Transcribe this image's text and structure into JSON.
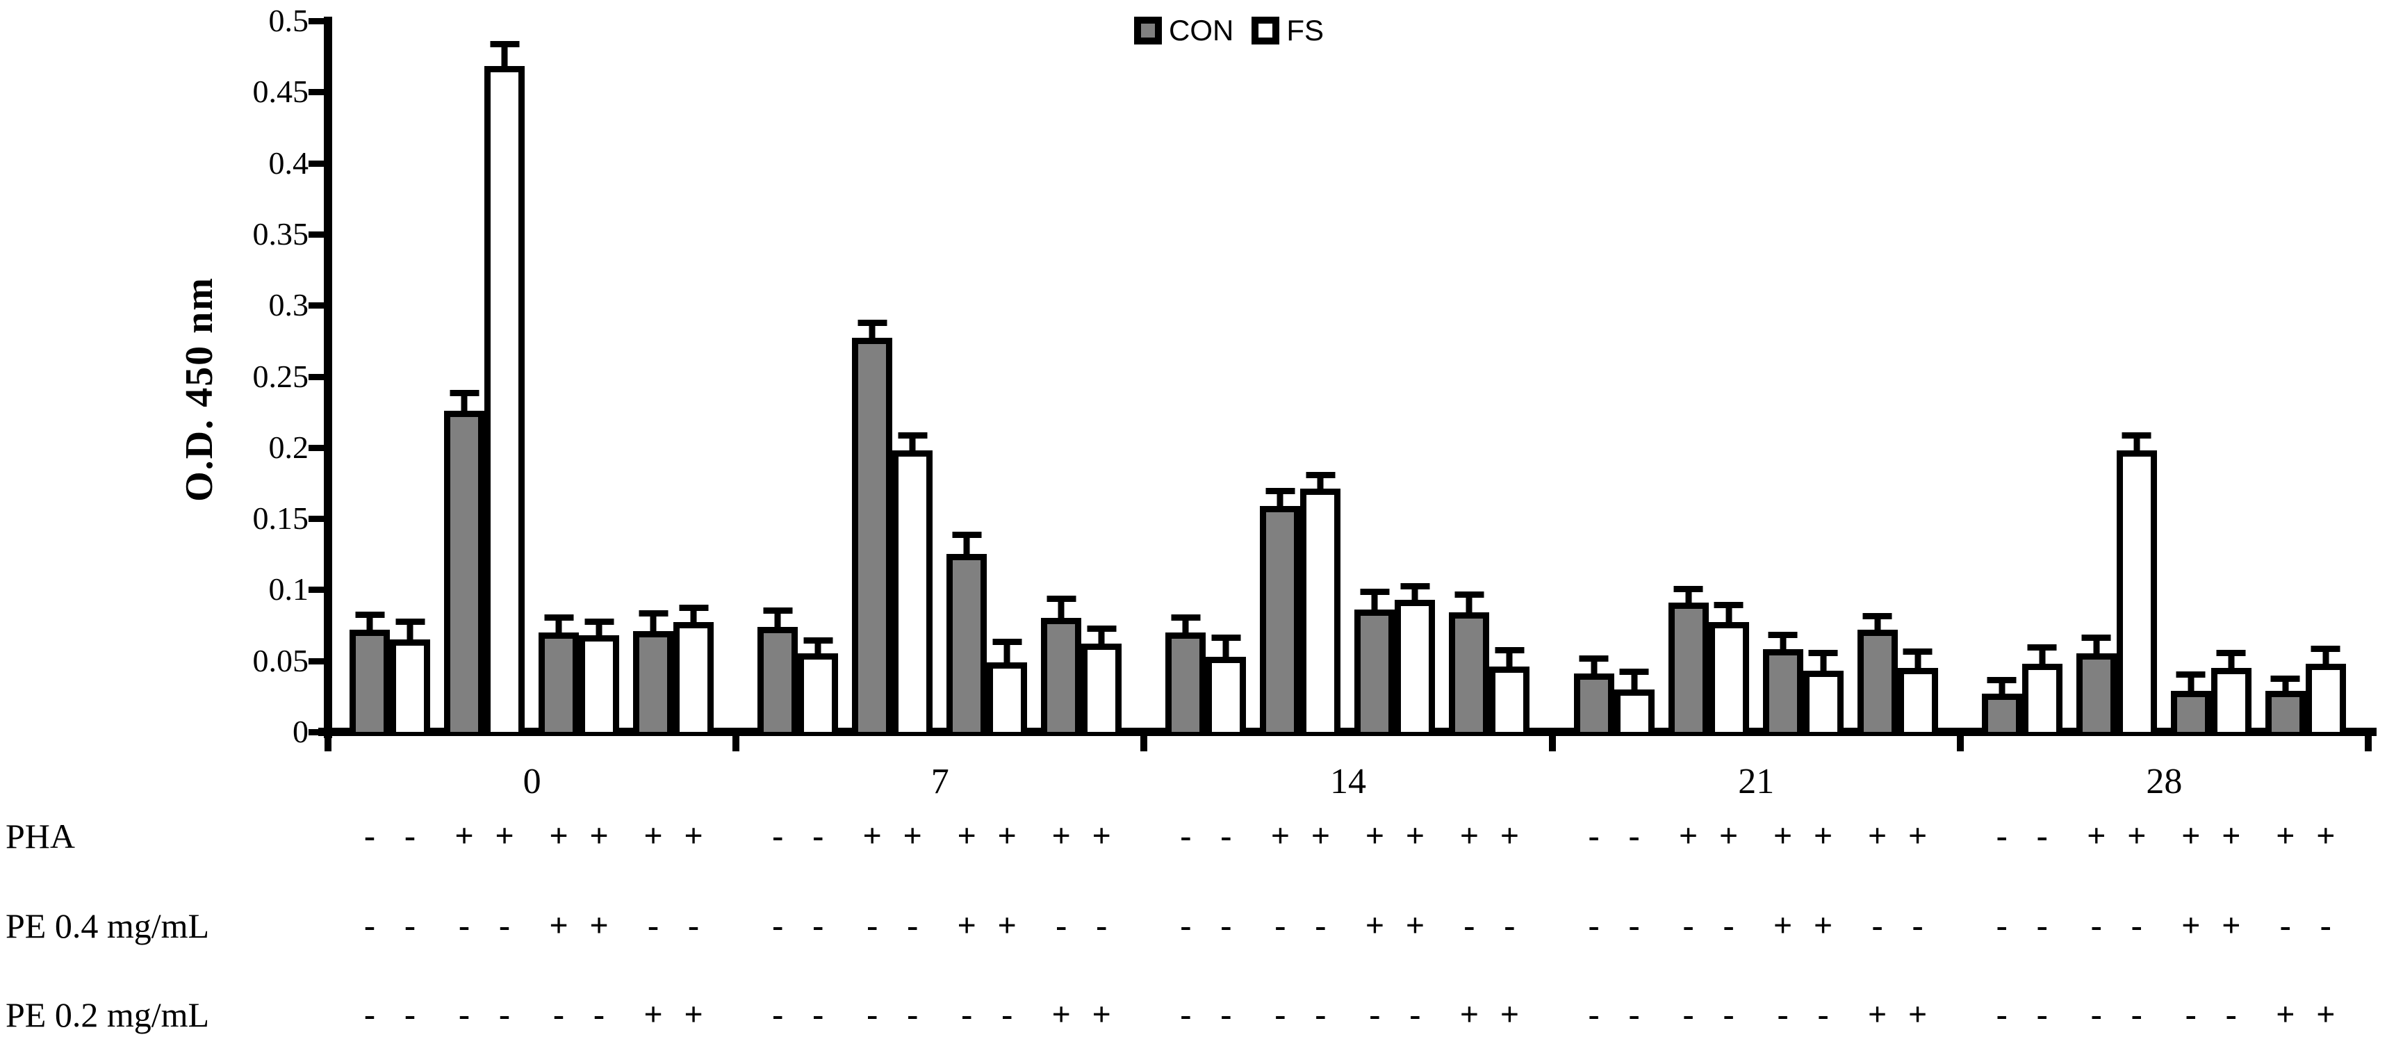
{
  "chart_data": {
    "type": "bar",
    "title": "",
    "ylabel": "O.D. 450 nm",
    "xlabel": "",
    "ylim": [
      0,
      0.5
    ],
    "ytick_labels": [
      "0",
      "0.05",
      "0.1",
      "0.15",
      "0.2",
      "0.25",
      "0.3",
      "0.35",
      "0.4",
      "0.45",
      "0.5"
    ],
    "grid": false,
    "error_bars": "upper",
    "legend": {
      "position": "top-center",
      "entries": [
        {
          "name": "CON",
          "fill": "#808080"
        },
        {
          "name": "FS",
          "fill": "#FFFFFF"
        }
      ]
    },
    "categories": [
      "0",
      "7",
      "14",
      "21",
      "28"
    ],
    "bars_per_group": 8,
    "series": [
      {
        "name": "CON",
        "fill": "#808080",
        "values": [
          [
            0.072,
            0.226,
            0.07,
            0.071
          ],
          [
            0.074,
            0.277,
            0.125,
            0.08
          ],
          [
            0.07,
            0.159,
            0.086,
            0.084
          ],
          [
            0.041,
            0.091,
            0.058,
            0.072
          ],
          [
            0.027,
            0.055,
            0.029,
            0.029
          ]
        ],
        "errors": [
          [
            0.017,
            0.019,
            0.017,
            0.019
          ],
          [
            0.018,
            0.017,
            0.02,
            0.02
          ],
          [
            0.017,
            0.017,
            0.019,
            0.019
          ],
          [
            0.017,
            0.016,
            0.017,
            0.016
          ],
          [
            0.016,
            0.018,
            0.018,
            0.015
          ]
        ]
      },
      {
        "name": "FS",
        "fill": "#FFFFFF",
        "values": [
          [
            0.065,
            0.468,
            0.068,
            0.077
          ],
          [
            0.055,
            0.198,
            0.049,
            0.062
          ],
          [
            0.053,
            0.171,
            0.093,
            0.046
          ],
          [
            0.03,
            0.077,
            0.043,
            0.045
          ],
          [
            0.048,
            0.198,
            0.045,
            0.048
          ]
        ],
        "errors": [
          [
            0.019,
            0.022,
            0.016,
            0.017
          ],
          [
            0.016,
            0.017,
            0.021,
            0.017
          ],
          [
            0.02,
            0.016,
            0.016,
            0.018
          ],
          [
            0.019,
            0.019,
            0.019,
            0.018
          ],
          [
            0.018,
            0.017,
            0.017,
            0.017
          ]
        ]
      }
    ],
    "condition_rows": [
      {
        "label": "PHA",
        "signs": [
          "-",
          "-",
          "+",
          "+",
          "+",
          "+",
          "+",
          "+"
        ]
      },
      {
        "label": "PE 0.4 mg/mL",
        "signs": [
          "-",
          "-",
          "-",
          "-",
          "+",
          "+",
          "-",
          "-"
        ]
      },
      {
        "label": "PE 0.2 mg/mL",
        "signs": [
          "-",
          "-",
          "-",
          "-",
          "-",
          "-",
          "+",
          "+"
        ]
      }
    ]
  }
}
